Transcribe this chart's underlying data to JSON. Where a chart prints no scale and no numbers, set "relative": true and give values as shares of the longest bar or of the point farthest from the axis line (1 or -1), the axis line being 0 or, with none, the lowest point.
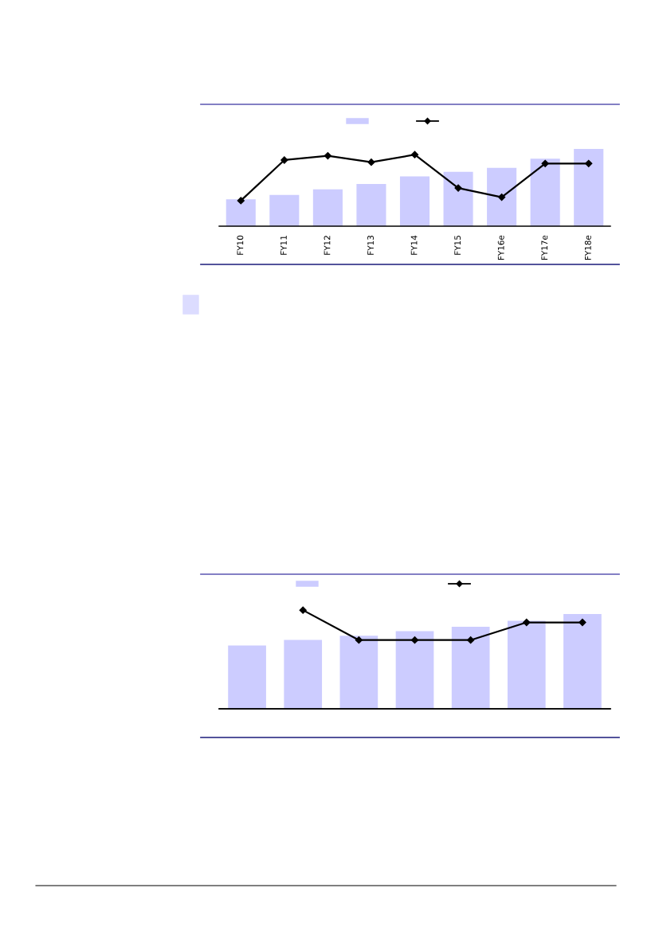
{
  "chart_data": [
    {
      "type": "bar",
      "relative": true,
      "categories": [
        "FY10",
        "FY11",
        "FY12",
        "FY13",
        "FY14",
        "FY15",
        "FY16e",
        "FY17e",
        "FY18e"
      ],
      "marker": "diamond",
      "line_style": "solid",
      "grid": false,
      "series": [
        {
          "color": "#ccccff",
          "values": [
            0.348,
            0.404,
            0.477,
            0.547,
            0.645,
            0.704,
            0.756,
            0.875,
            1
          ]
        },
        {
          "type": "line",
          "color": "#000000",
          "values": [
            0.331,
            0.857,
            0.913,
            0.829,
            0.927,
            0.495,
            0.376,
            0.812,
            0.812
          ]
        }
      ]
    },
    {
      "type": "bar",
      "relative": true,
      "categories": [
        null,
        null,
        null,
        null,
        null,
        null,
        null
      ],
      "grid": false,
      "series": [
        {
          "color": "#ccccff",
          "values": [
            0.669,
            0.727,
            0.772,
            0.819,
            0.865,
            0.929,
            1
          ]
        }
      ]
    },
    {
      "type": "line",
      "relative": true,
      "categories": [
        null,
        null,
        null,
        null,
        null,
        null,
        null
      ],
      "marker": "diamond",
      "line_style": "solid",
      "grid": false,
      "series": [
        {
          "color": "#000000",
          "values": [
            null,
            1,
            0.697,
            0.697,
            0.697,
            0.876,
            0.876
          ]
        }
      ]
    }
  ]
}
